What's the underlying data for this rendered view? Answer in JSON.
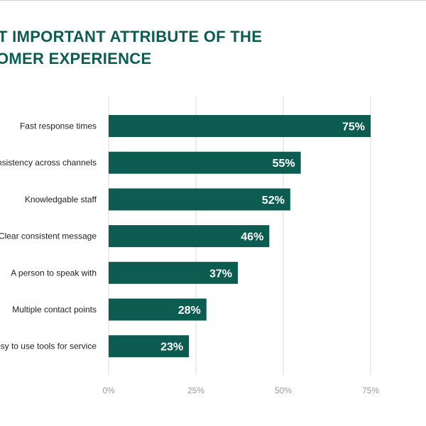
{
  "title_lines": [
    "T IMPORTANT ATTRIBUTE OF THE",
    "OMER EXPERIENCE"
  ],
  "colors": {
    "bar": "#0d5c52",
    "title": "#0d5c52",
    "grid": "#d9d9d9",
    "value_label": "#ffffff"
  },
  "chart_data": {
    "type": "bar",
    "orientation": "horizontal",
    "title": "T IMPORTANT ATTRIBUTE OF THE OMER EXPERIENCE",
    "categories": [
      "Fast response times",
      "nsistency across channels",
      "Knowledgable staff",
      "Clear consistent message",
      "A person to speak with",
      "Multiple contact points",
      "sy to use tools for service"
    ],
    "values": [
      75,
      55,
      52,
      46,
      37,
      28,
      23
    ],
    "value_labels": [
      "75%",
      "55%",
      "52%",
      "46%",
      "37%",
      "28%",
      "23%"
    ],
    "xlim": [
      0,
      75
    ],
    "xticks": [
      0,
      25,
      50,
      75
    ],
    "xtick_labels": [
      "0%",
      "25%",
      "50%",
      "75%"
    ],
    "grid": true,
    "legend": "none"
  }
}
